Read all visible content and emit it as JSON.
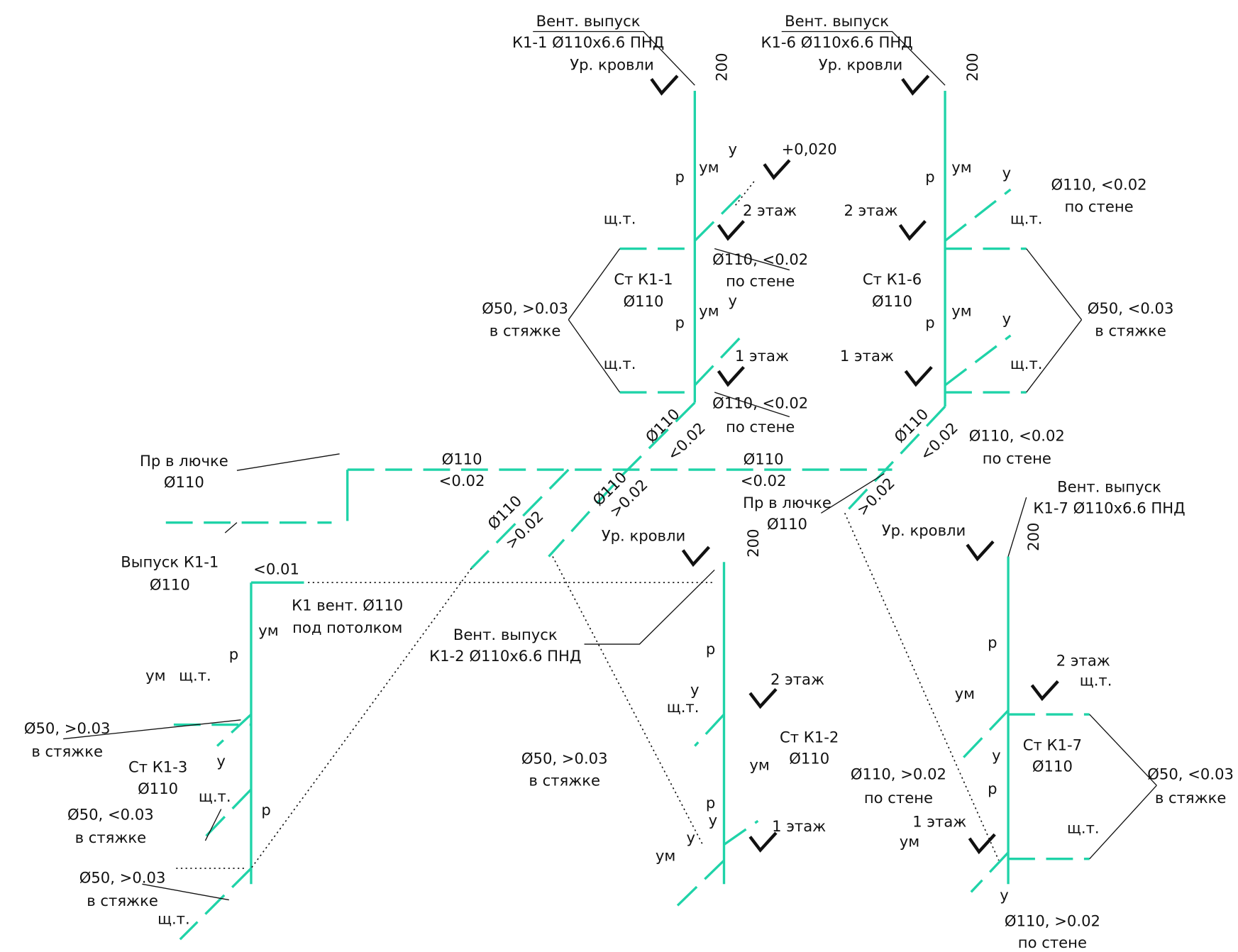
{
  "labels": [
    "Вент. выпуск",
    "К1-1 Ø110x6.6 ПНД",
    "Ур. кровли",
    "200",
    "+0,020",
    "ум",
    "у",
    "р",
    "2 этаж",
    "щ.т.",
    "Ø110, <0.02",
    "по стене",
    "Ст К1-1",
    "Ø110",
    "Ø50, >0.03",
    "в стяжке",
    "ум",
    "у",
    "р",
    "1 этаж",
    "щ.т.",
    "Ø110, <0.02",
    "по стене",
    "Вент. выпуск",
    "К1-6 Ø110x6.6 ПНД",
    "Ур. кровли",
    "200",
    "ум",
    "у",
    "р",
    "Ø110, <0.02",
    "по стене",
    "2 этаж",
    "щ.т.",
    "Ст К1-6",
    "Ø110",
    "Ø50, <0.03",
    "в стяжке",
    "ум",
    "у",
    "р",
    "1 этаж",
    "щ.т.",
    "Ø110, <0.02",
    "по стене",
    "Пр в лючке",
    "Ø110",
    "Ø110",
    "<0.02",
    "Ø110",
    "<0.02",
    "Ø110",
    "<0.02",
    "Ø110",
    "<0.02",
    "Ø110",
    ">0.02",
    "Ø110",
    ">0.02",
    ">0.02",
    "Пр в лючке",
    "Ø110",
    "Выпуск К1-1",
    "Ø110",
    "Ур. кровли",
    "200",
    "<0.01",
    "К1 вент. Ø110",
    "под потолком",
    "Вент. выпуск",
    "К1-2 Ø110x6.6 ПНД",
    "Вент. выпуск",
    "К1-7 Ø110x6.6 ПНД",
    "Ур. кровли",
    "200",
    "ум",
    "р",
    "ум",
    "щ.т.",
    "Ø50, >0.03",
    "в стяжке",
    "у",
    "Ст К1-3",
    "Ø110",
    "щ.т.",
    "Ø50, <0.03",
    "в стяжке",
    "р",
    "Ø50, >0.03",
    "в стяжке",
    "щ.т.",
    "р",
    "у",
    "2 этаж",
    "щ.т.",
    "Ст К1-2",
    "Ø110",
    "Ø50, >0.03",
    "в стяжке",
    "ум",
    "р",
    "у",
    "у",
    "1 этаж",
    "ум",
    "р",
    "2 этаж",
    "щ.т.",
    "ум",
    "у",
    "Ст К1-7",
    "Ø110",
    "Ø110, >0.02",
    "по стене",
    "Ø50, <0.03",
    "в стяжке",
    "р",
    "1 этаж",
    "щ.т.",
    "ум",
    "у",
    "Ø110, >0.02",
    "по стене"
  ]
}
